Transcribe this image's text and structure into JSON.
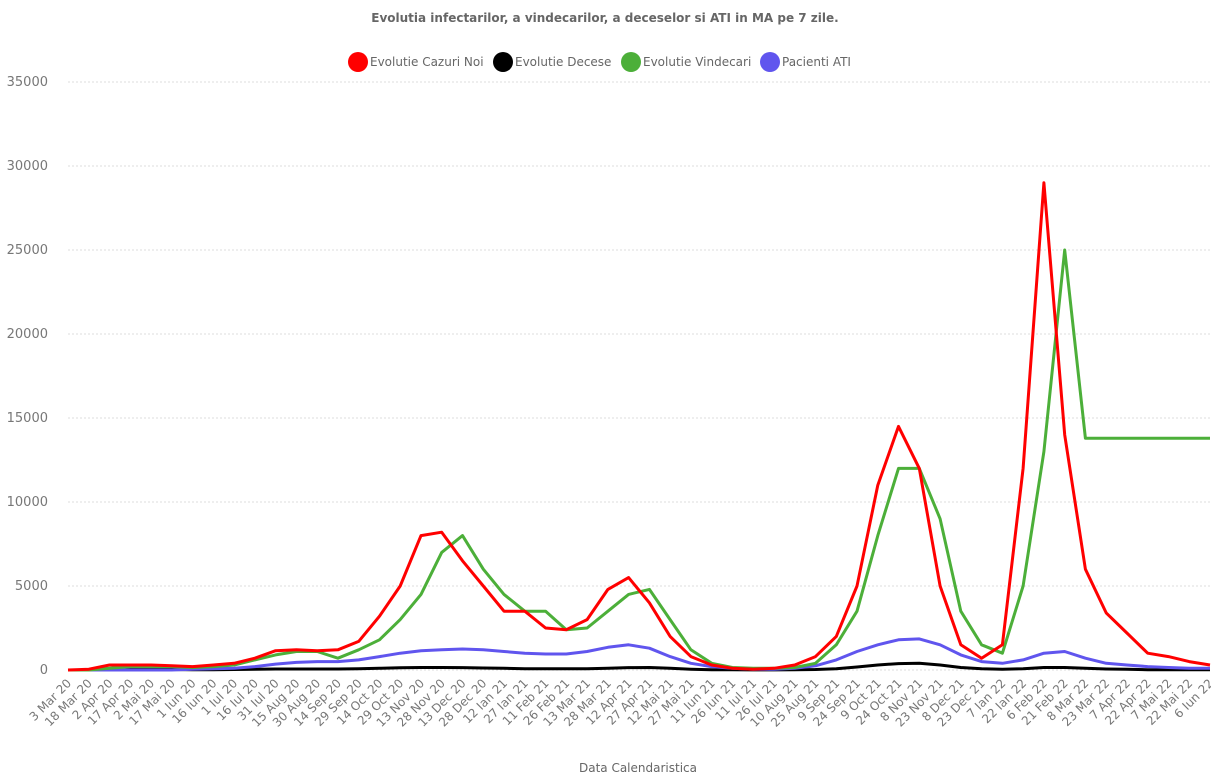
{
  "chart_data": {
    "type": "line",
    "title": "Evolutia infectarilor, a vindecarilor, a deceselor si ATI in MA pe 7 zile.",
    "x_label": "Data Calendaristica",
    "categories": [
      "3 Mar 20",
      "18 Mar 20",
      "2 Apr 20",
      "17 Apr 20",
      "2 Mai 20",
      "17 Mai 20",
      "1 Iun 20",
      "16 Iun 20",
      "1 Iul 20",
      "16 Iul 20",
      "31 Iul 20",
      "15 Aug 20",
      "30 Aug 20",
      "14 Sep 20",
      "29 Sep 20",
      "14 Oct 20",
      "29 Oct 20",
      "13 Nov 20",
      "28 Nov 20",
      "13 Dec 20",
      "28 Dec 20",
      "12 Ian 21",
      "27 Ian 21",
      "11 Feb 21",
      "26 Feb 21",
      "13 Mar 21",
      "28 Mar 21",
      "12 Apr 21",
      "27 Apr 21",
      "12 Mai 21",
      "27 Mai 21",
      "11 Iun 21",
      "26 Iun 21",
      "11 Iul 21",
      "26 Iul 21",
      "10 Aug 21",
      "25 Aug 21",
      "9 Sep 21",
      "24 Sep 21",
      "9 Oct 21",
      "24 Oct 21",
      "8 Nov 21",
      "23 Nov 21",
      "8 Dec 21",
      "23 Dec 21",
      "7 Ian 22",
      "22 Ian 22",
      "6 Feb 22",
      "21 Feb 22",
      "8 Mar 22",
      "23 Mar 22",
      "7 Apr 22",
      "22 Apr 22",
      "7 Mai 22",
      "22 Mai 22",
      "6 Iun 22"
    ],
    "series": [
      {
        "name": "Evolutie Cazuri Noi",
        "color": "#ff0000",
        "values": [
          0,
          50,
          300,
          300,
          300,
          250,
          200,
          300,
          400,
          700,
          1150,
          1200,
          1150,
          1200,
          1700,
          3200,
          5000,
          8000,
          8200,
          6500,
          5000,
          3500,
          3500,
          2500,
          2400,
          3000,
          4800,
          5500,
          4000,
          2000,
          800,
          300,
          100,
          50,
          100,
          300,
          800,
          2000,
          5000,
          11000,
          14500,
          12000,
          5000,
          1500,
          700,
          1500,
          12000,
          29000,
          14000,
          6000,
          3400,
          2200,
          1000,
          800,
          500,
          300
        ]
      },
      {
        "name": "Evolutie Decese",
        "color": "#000000",
        "values": [
          0,
          0,
          20,
          40,
          40,
          30,
          20,
          20,
          30,
          50,
          60,
          60,
          60,
          60,
          70,
          100,
          130,
          150,
          150,
          140,
          120,
          100,
          80,
          70,
          70,
          80,
          110,
          140,
          150,
          100,
          50,
          20,
          10,
          5,
          5,
          10,
          30,
          80,
          180,
          300,
          380,
          400,
          300,
          150,
          70,
          50,
          80,
          150,
          150,
          100,
          60,
          40,
          20,
          10,
          10,
          10
        ]
      },
      {
        "name": "Evolutie Vindecari",
        "color": "#4caf39",
        "values": [
          0,
          0,
          100,
          200,
          200,
          200,
          150,
          200,
          300,
          600,
          900,
          1100,
          1100,
          700,
          1200,
          1800,
          3000,
          4500,
          7000,
          8000,
          6000,
          4500,
          3500,
          3500,
          2400,
          2500,
          3500,
          4500,
          4800,
          3000,
          1200,
          400,
          150,
          100,
          100,
          150,
          400,
          1500,
          3500,
          8000,
          12000,
          12000,
          9000,
          3500,
          1500,
          1000,
          5000,
          13000,
          25000,
          13800,
          13800,
          13800,
          13800,
          13800,
          13800,
          13800
        ]
      },
      {
        "name": "Pacienti ATI",
        "color": "#6055ee",
        "values": [
          0,
          0,
          0,
          0,
          0,
          0,
          50,
          80,
          100,
          200,
          350,
          450,
          500,
          500,
          600,
          800,
          1000,
          1150,
          1200,
          1250,
          1200,
          1100,
          1000,
          950,
          950,
          1100,
          1350,
          1500,
          1300,
          800,
          400,
          200,
          100,
          50,
          50,
          100,
          250,
          600,
          1100,
          1500,
          1800,
          1850,
          1500,
          900,
          500,
          400,
          600,
          1000,
          1100,
          700,
          400,
          300,
          200,
          150,
          100,
          100
        ]
      }
    ],
    "ylim": [
      0,
      35000
    ],
    "yticks": [
      0,
      5000,
      10000,
      15000,
      20000,
      25000,
      30000,
      35000
    ],
    "grid": true
  }
}
